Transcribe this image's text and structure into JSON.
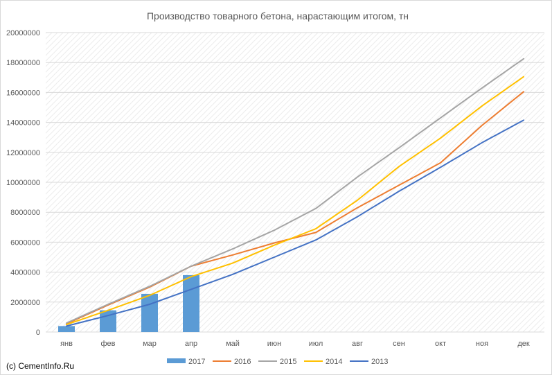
{
  "watermark": "(c) CementInfo.Ru",
  "chart_data": {
    "type": "bar+line",
    "title": "Производство товарного бетона, нарастающим итогом, тн",
    "categories": [
      "янв",
      "фев",
      "мар",
      "апр",
      "май",
      "июн",
      "июл",
      "авг",
      "сен",
      "окт",
      "ноя",
      "дек"
    ],
    "ylim": [
      0,
      20000000
    ],
    "yticks": [
      "0",
      "2000000",
      "4000000",
      "6000000",
      "8000000",
      "10000000",
      "12000000",
      "14000000",
      "16000000",
      "18000000",
      "20000000"
    ],
    "grid": "diagonal-hatch",
    "legend_position": "bottom",
    "bar_series": {
      "name": "2017",
      "color": "#5b9bd5",
      "values": [
        400000,
        1450000,
        2550000,
        3800000
      ]
    },
    "series": [
      {
        "name": "2016",
        "color": "#ed7d31",
        "values": [
          550000,
          1800000,
          3000000,
          4400000,
          5150000,
          5950000,
          6650000,
          8300000,
          9800000,
          11300000,
          13800000,
          16050000
        ]
      },
      {
        "name": "2015",
        "color": "#a5a5a5",
        "values": [
          600000,
          1850000,
          3050000,
          4400000,
          5550000,
          6800000,
          8250000,
          10350000,
          12300000,
          14300000,
          16300000,
          18250000
        ]
      },
      {
        "name": "2014",
        "color": "#ffc000",
        "values": [
          500000,
          1450000,
          2450000,
          3700000,
          4600000,
          5800000,
          6900000,
          8800000,
          11050000,
          12950000,
          15100000,
          17050000
        ]
      },
      {
        "name": "2013",
        "color": "#4472c4",
        "values": [
          400000,
          1100000,
          1850000,
          2850000,
          3850000,
          5000000,
          6150000,
          7700000,
          9400000,
          11000000,
          12650000,
          14150000
        ]
      }
    ]
  }
}
